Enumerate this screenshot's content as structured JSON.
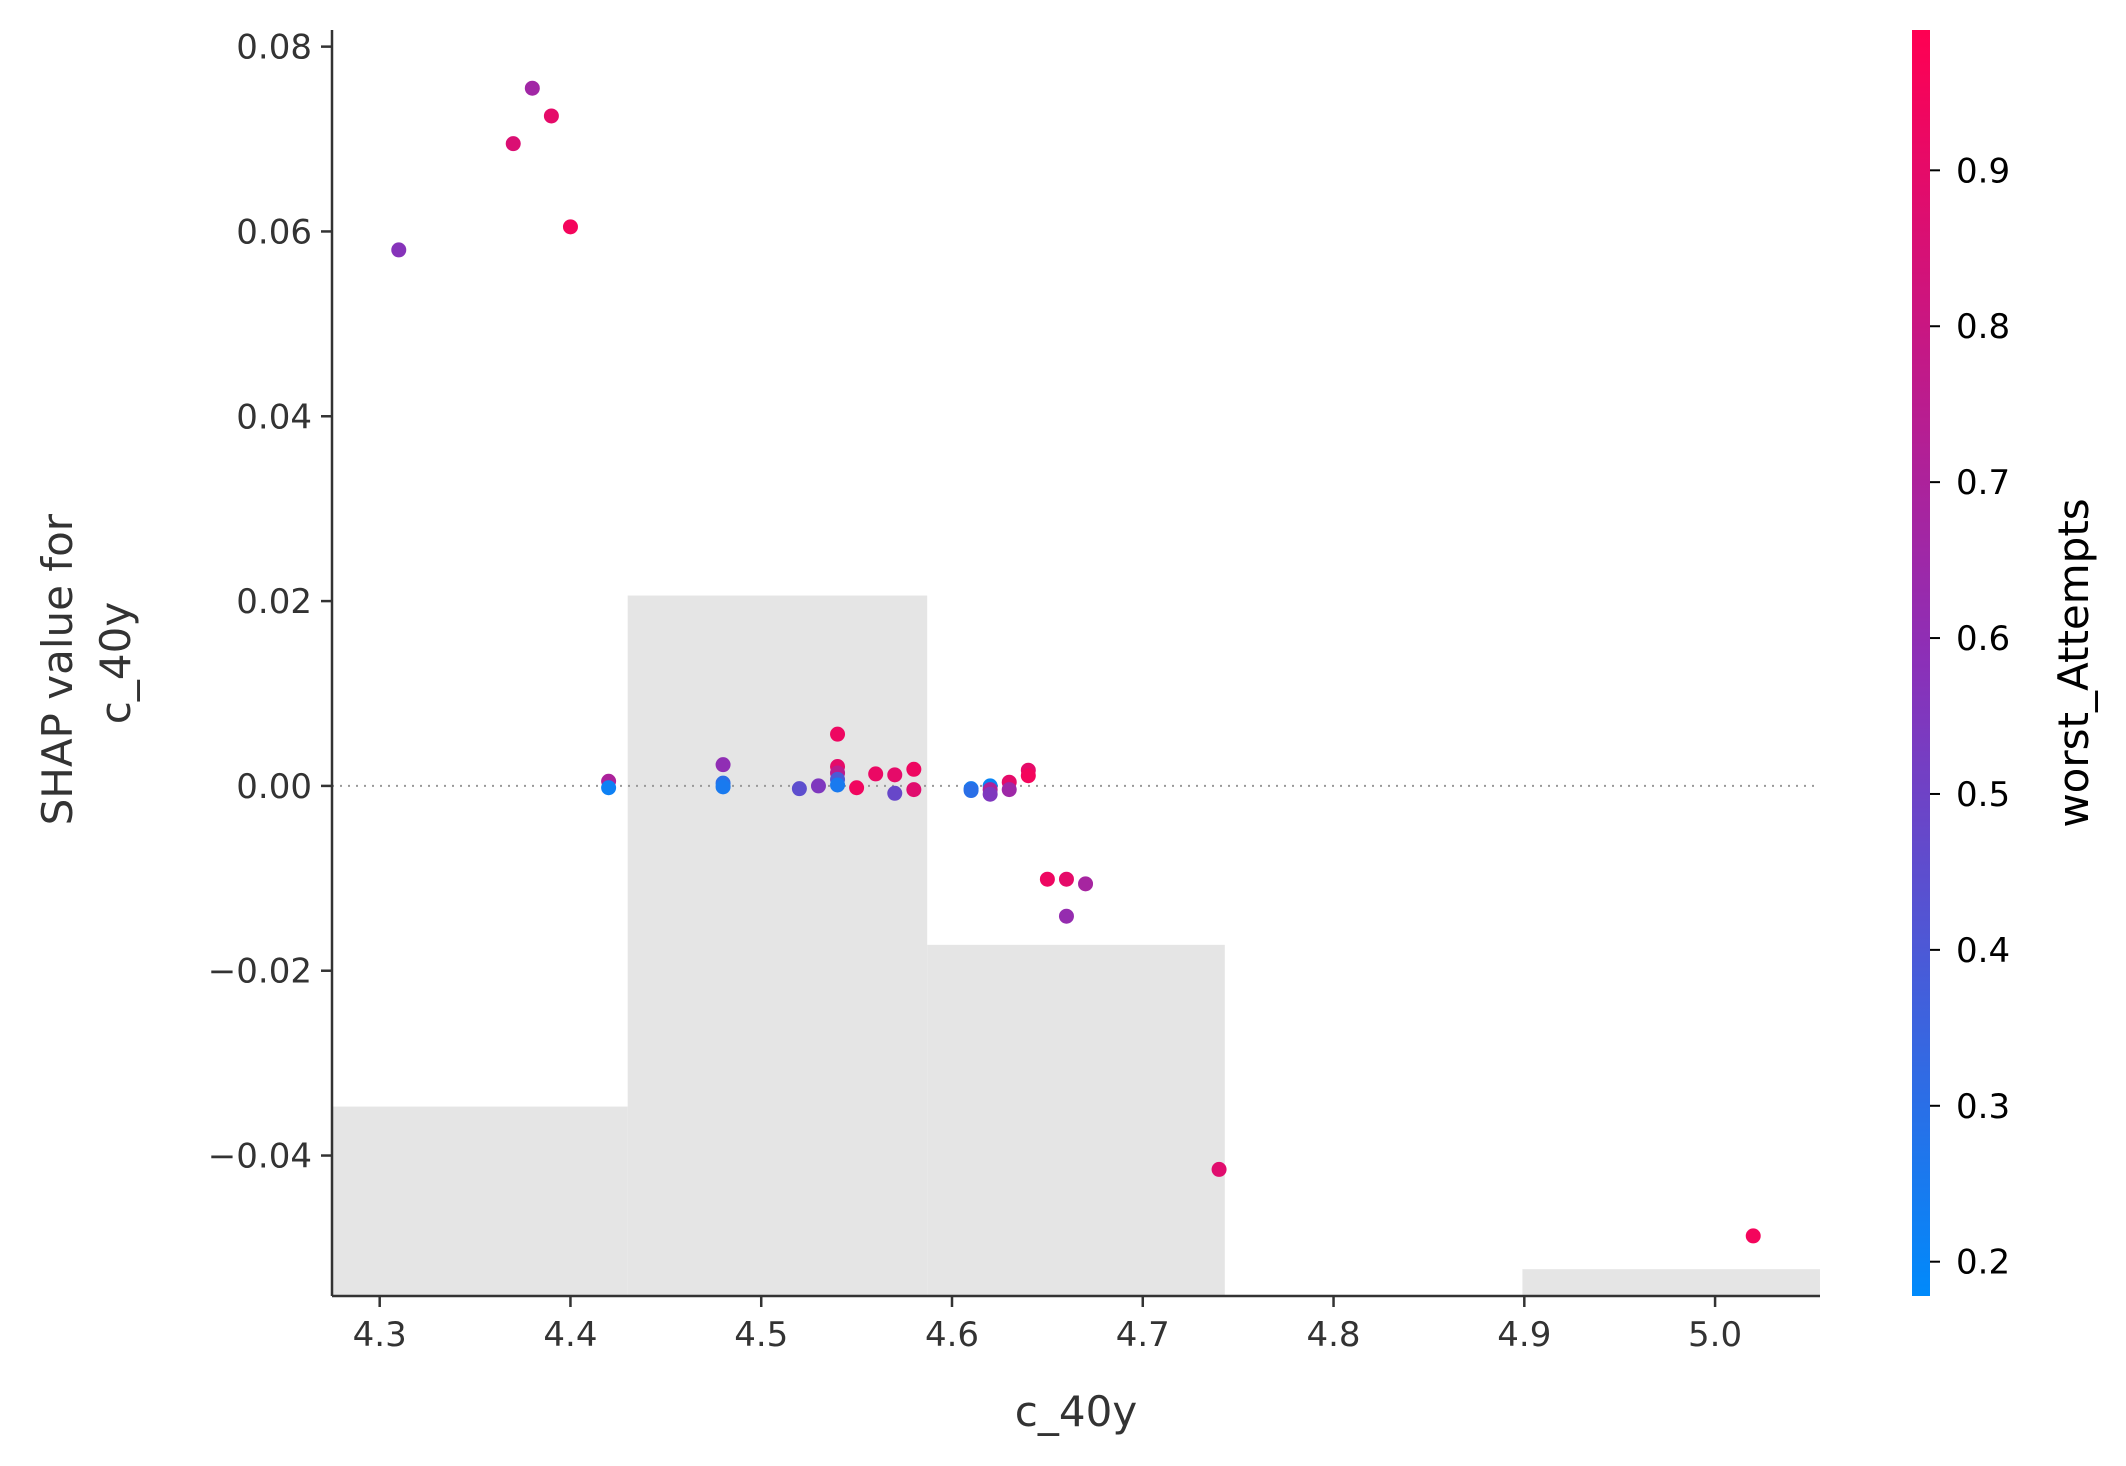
{
  "chart_data": {
    "type": "scatter",
    "title": "",
    "xlabel": "c_40y",
    "ylabel_lines": [
      "SHAP value for",
      "c_40y"
    ],
    "xlim": [
      4.275,
      5.055
    ],
    "ylim": [
      -0.0552,
      0.0818
    ],
    "x_ticks": [
      4.3,
      4.4,
      4.5,
      4.6,
      4.7,
      4.8,
      4.9,
      5.0
    ],
    "x_tick_labels": [
      "4.3",
      "4.4",
      "4.5",
      "4.6",
      "4.7",
      "4.8",
      "4.9",
      "5.0"
    ],
    "y_ticks": [
      0.08,
      0.06,
      0.04,
      0.02,
      0.0,
      -0.02,
      -0.04
    ],
    "y_tick_labels": [
      "0.08",
      "0.06",
      "0.04",
      "0.02",
      "0.00",
      "−0.02",
      "−0.04"
    ],
    "zero_line": 0.0,
    "grid": false,
    "histogram": {
      "color": "#e5e5e5",
      "bins": [
        {
          "x0": 4.275,
          "x1": 4.43,
          "top": -0.0347
        },
        {
          "x0": 4.43,
          "x1": 4.587,
          "top": 0.0206
        },
        {
          "x0": 4.587,
          "x1": 4.743,
          "top": -0.0172
        },
        {
          "x0": 4.743,
          "x1": 4.899,
          "top": -0.0552
        },
        {
          "x0": 4.899,
          "x1": 5.055,
          "top": -0.0523
        }
      ]
    },
    "colorbar": {
      "title": "worst_Attempts",
      "range": [
        0.178,
        0.99
      ],
      "ticks": [
        0.2,
        0.3,
        0.4,
        0.5,
        0.6,
        0.7,
        0.8,
        0.9
      ],
      "tick_labels": [
        "0.2",
        "0.3",
        "0.4",
        "0.5",
        "0.6",
        "0.7",
        "0.8",
        "0.9"
      ],
      "low_color": "#008afb",
      "high_color": "#ff0052"
    },
    "points": [
      {
        "x": 4.31,
        "y": 0.058,
        "c": 0.57
      },
      {
        "x": 4.37,
        "y": 0.0695,
        "c": 0.86
      },
      {
        "x": 4.38,
        "y": 0.0755,
        "c": 0.66
      },
      {
        "x": 4.39,
        "y": 0.0725,
        "c": 0.9
      },
      {
        "x": 4.4,
        "y": 0.0605,
        "c": 0.95
      },
      {
        "x": 4.42,
        "y": 0.0005,
        "c": 0.7
      },
      {
        "x": 4.42,
        "y": -0.0002,
        "c": 0.22
      },
      {
        "x": 4.48,
        "y": 0.0023,
        "c": 0.6
      },
      {
        "x": 4.48,
        "y": 0.0003,
        "c": 0.3
      },
      {
        "x": 4.48,
        "y": -0.0001,
        "c": 0.25
      },
      {
        "x": 4.52,
        "y": -0.0003,
        "c": 0.45
      },
      {
        "x": 4.53,
        "y": 0.0,
        "c": 0.55
      },
      {
        "x": 4.54,
        "y": 0.0056,
        "c": 0.93
      },
      {
        "x": 4.54,
        "y": 0.0021,
        "c": 0.9
      },
      {
        "x": 4.54,
        "y": 0.0014,
        "c": 0.75
      },
      {
        "x": 4.54,
        "y": 0.0007,
        "c": 0.4
      },
      {
        "x": 4.54,
        "y": 0.0001,
        "c": 0.25
      },
      {
        "x": 4.55,
        "y": -0.0002,
        "c": 0.94
      },
      {
        "x": 4.56,
        "y": 0.0013,
        "c": 0.92
      },
      {
        "x": 4.57,
        "y": 0.0012,
        "c": 0.9
      },
      {
        "x": 4.57,
        "y": -0.0008,
        "c": 0.48
      },
      {
        "x": 4.58,
        "y": 0.0018,
        "c": 0.93
      },
      {
        "x": 4.58,
        "y": -0.0004,
        "c": 0.88
      },
      {
        "x": 4.61,
        "y": -0.0003,
        "c": 0.25
      },
      {
        "x": 4.61,
        "y": -0.0005,
        "c": 0.3
      },
      {
        "x": 4.62,
        "y": 0.0,
        "c": 0.2
      },
      {
        "x": 4.62,
        "y": -0.0004,
        "c": 0.7
      },
      {
        "x": 4.62,
        "y": -0.0009,
        "c": 0.55
      },
      {
        "x": 4.63,
        "y": 0.0004,
        "c": 0.9
      },
      {
        "x": 4.63,
        "y": -0.0004,
        "c": 0.65
      },
      {
        "x": 4.64,
        "y": 0.0017,
        "c": 0.9
      },
      {
        "x": 4.64,
        "y": 0.0011,
        "c": 0.95
      },
      {
        "x": 4.65,
        "y": -0.0101,
        "c": 0.93
      },
      {
        "x": 4.66,
        "y": -0.0101,
        "c": 0.9
      },
      {
        "x": 4.66,
        "y": -0.0141,
        "c": 0.62
      },
      {
        "x": 4.67,
        "y": -0.0106,
        "c": 0.68
      },
      {
        "x": 4.74,
        "y": -0.0415,
        "c": 0.88
      },
      {
        "x": 5.02,
        "y": -0.0487,
        "c": 0.95
      }
    ]
  }
}
